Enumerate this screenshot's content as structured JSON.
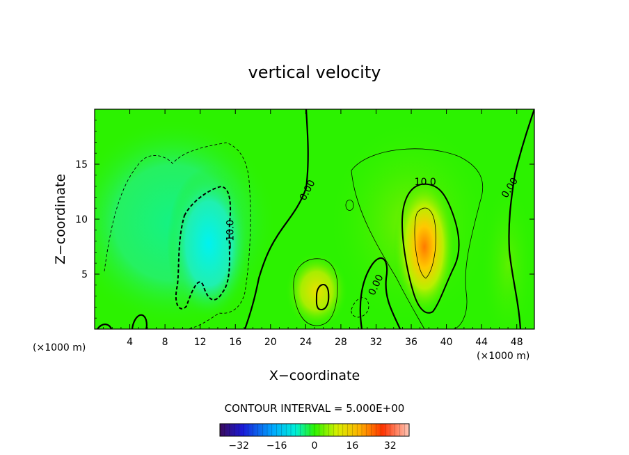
{
  "chart_data": {
    "type": "heatmap",
    "title": "vertical velocity",
    "xlabel": "X−coordinate",
    "ylabel": "Z−coordinate",
    "x_unit": "(×1000 m)",
    "y_unit": "(×1000 m)",
    "xlim": [
      0,
      50
    ],
    "ylim": [
      0,
      20
    ],
    "x_ticks": [
      4,
      8,
      12,
      16,
      20,
      24,
      28,
      32,
      36,
      40,
      44,
      48
    ],
    "y_ticks": [
      5,
      10,
      15
    ],
    "x_tick_labels": [
      "4",
      "8",
      "12",
      "16",
      "20",
      "24",
      "28",
      "32",
      "36",
      "40",
      "44",
      "48"
    ],
    "y_tick_labels": [
      "5",
      "10",
      "15"
    ],
    "contour_interval_text": "CONTOUR INTERVAL = 5.000E+00",
    "contour_interval": 5.0,
    "colorbar": {
      "range": [
        -40,
        40
      ],
      "ticks": [
        -32,
        -16,
        0,
        16,
        32
      ],
      "tick_labels": [
        "−32",
        "−16",
        "0",
        "16",
        "32"
      ]
    },
    "contour_labels": [
      {
        "text": "0.00",
        "x": 24.5,
        "z": 12.5,
        "rotate": -62
      },
      {
        "text": "0.00",
        "x": 32.3,
        "z": 3.9,
        "rotate": -65
      },
      {
        "text": "0.00",
        "x": 47.5,
        "z": 12.7,
        "rotate": -58
      },
      {
        "text": "10.0",
        "x": 37.6,
        "z": 13.1,
        "rotate": 0
      },
      {
        "text": "−10.0",
        "x": 15.8,
        "z": 8.6,
        "rotate": -90
      }
    ],
    "features": [
      {
        "kind": "downdraft",
        "x": 13,
        "z": 8,
        "w": -14
      },
      {
        "kind": "updraft",
        "x": 37.5,
        "z": 6.5,
        "w": 24
      },
      {
        "kind": "updraft",
        "x": 26,
        "z": 3,
        "w": 9
      }
    ]
  }
}
